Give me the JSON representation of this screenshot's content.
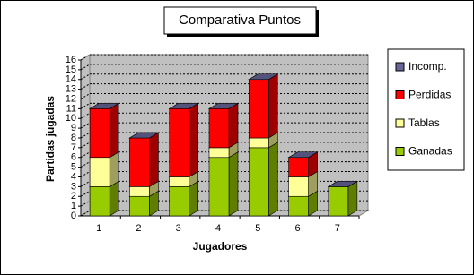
{
  "chart_data": {
    "type": "bar3d_stacked",
    "title": "Comparativa Puntos",
    "x_label": "Jugadores",
    "y_label": "Partidas jugadas",
    "categories": [
      "1",
      "2",
      "3",
      "4",
      "5",
      "6",
      "7"
    ],
    "series": [
      {
        "name": "Ganadas",
        "color": "#99cc00",
        "values": [
          3,
          2,
          3,
          6,
          7,
          2,
          3
        ]
      },
      {
        "name": "Tablas",
        "color": "#ffff99",
        "values": [
          3,
          1,
          1,
          1,
          1,
          2,
          0
        ]
      },
      {
        "name": "Perdidas",
        "color": "#ff0000",
        "values": [
          5,
          5,
          7,
          4,
          6,
          2,
          0
        ]
      },
      {
        "name": "Incomp.",
        "color": "#666699",
        "values": [
          0,
          0,
          0,
          0,
          0,
          0,
          0
        ]
      }
    ],
    "ylim": [
      0,
      16
    ],
    "yticks": [
      0,
      1,
      2,
      3,
      4,
      5,
      6,
      7,
      8,
      9,
      10,
      11,
      12,
      13,
      14,
      15,
      16
    ],
    "grid": true,
    "legend": "right"
  }
}
